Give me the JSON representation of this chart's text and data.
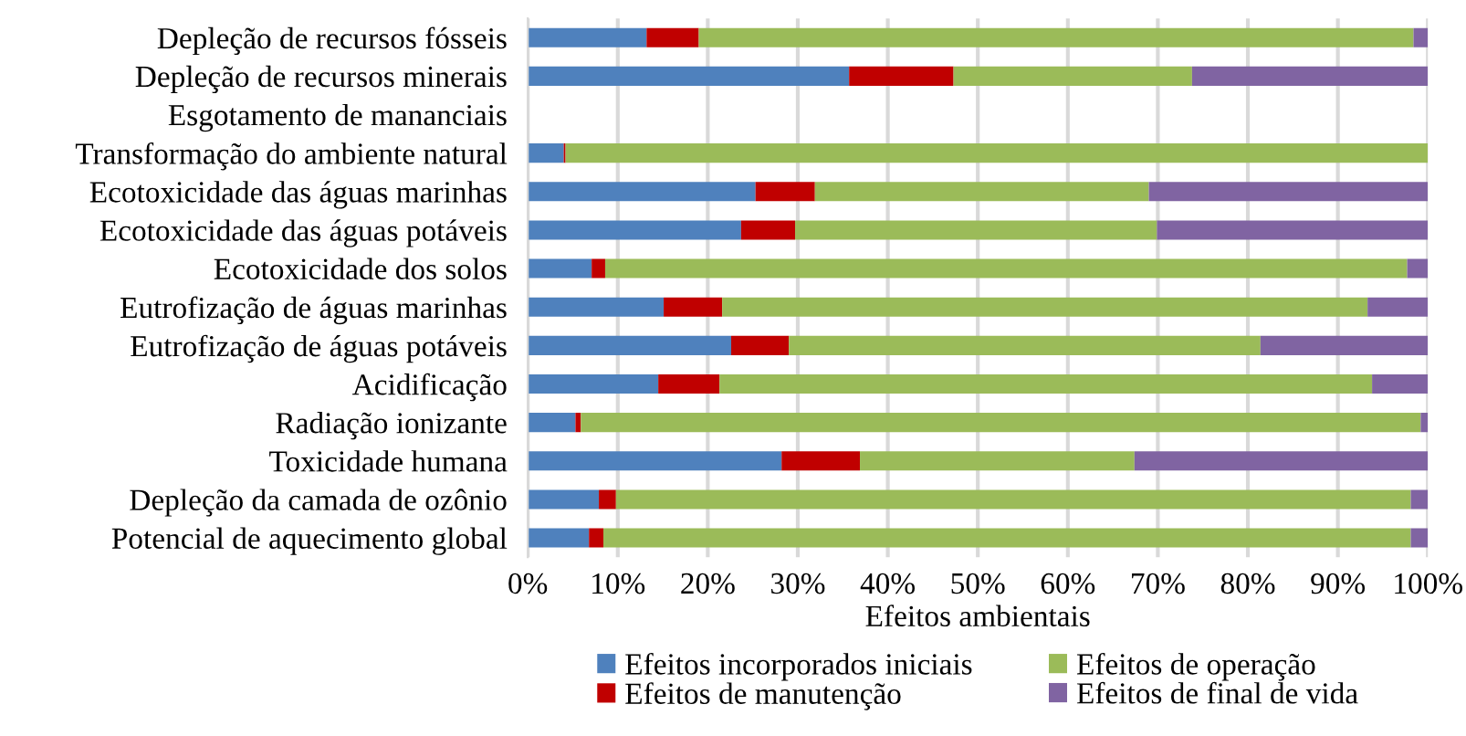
{
  "chart_data": {
    "type": "bar",
    "orientation": "horizontal",
    "stacked": true,
    "categories": [
      "Depleção de recursos fósseis",
      "Depleção de recursos minerais",
      "Esgotamento de mananciais",
      "Transformação do ambiente natural",
      "Ecotoxicidade das águas marinhas",
      "Ecotoxicidade das águas potáveis",
      "Ecotoxicidade dos solos",
      "Eutrofização de águas marinhas",
      "Eutrofização de águas potáveis",
      "Acidificação",
      "Radiação ionizante",
      "Toxicidade humana",
      "Depleção da camada de ozônio",
      "Potencial de aquecimento global"
    ],
    "series": [
      {
        "name": "Efeitos incorporados iniciais",
        "color": "#4f81bd",
        "values": [
          13.2,
          35.7,
          null,
          4.0,
          25.3,
          23.7,
          7.1,
          15.1,
          22.6,
          14.5,
          5.3,
          28.2,
          7.9,
          6.8
        ]
      },
      {
        "name": "Efeitos de manutenção",
        "color": "#c00000",
        "values": [
          5.8,
          11.6,
          null,
          0.2,
          6.6,
          6.0,
          1.5,
          6.5,
          6.4,
          6.8,
          0.6,
          8.7,
          1.9,
          1.6
        ]
      },
      {
        "name": "Efeitos de operação",
        "color": "#9bbb59",
        "values": [
          79.4,
          26.5,
          null,
          95.8,
          37.1,
          40.2,
          89.1,
          71.7,
          52.4,
          72.5,
          93.3,
          30.5,
          88.3,
          89.7
        ]
      },
      {
        "name": "Efeitos de final de vida",
        "color": "#8064a2",
        "values": [
          1.6,
          26.2,
          null,
          0,
          31.0,
          30.1,
          2.3,
          6.7,
          18.6,
          6.2,
          0.8,
          32.6,
          1.9,
          1.9
        ]
      }
    ],
    "xlabel": "Efeitos ambientais",
    "xlim": [
      0,
      100
    ],
    "xticks": [
      {
        "value": 0,
        "label": "0%"
      },
      {
        "value": 10,
        "label": "10%"
      },
      {
        "value": 20,
        "label": "20%"
      },
      {
        "value": 30,
        "label": "30%"
      },
      {
        "value": 40,
        "label": "40%"
      },
      {
        "value": 50,
        "label": "50%"
      },
      {
        "value": 60,
        "label": "60%"
      },
      {
        "value": 70,
        "label": "70%"
      },
      {
        "value": 80,
        "label": "80%"
      },
      {
        "value": 90,
        "label": "90%"
      },
      {
        "value": 100,
        "label": "100%"
      }
    ],
    "grid": "x",
    "legend": "bottom"
  }
}
